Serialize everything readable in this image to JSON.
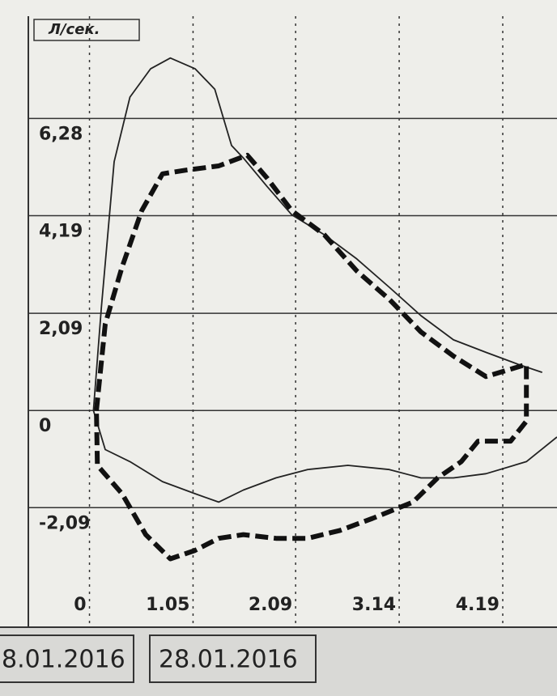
{
  "chart_data": {
    "type": "line",
    "y_label": "Л/сек.",
    "xlim": [
      -0.62,
      4.74
    ],
    "ylim": [
      -4.4,
      8.48
    ],
    "xticks": [
      0,
      1.05,
      2.09,
      3.14,
      4.19
    ],
    "yticks": [
      {
        "value": 6.28,
        "label": "6,28"
      },
      {
        "value": 4.19,
        "label": "4,19"
      },
      {
        "value": 2.09,
        "label": "2,09"
      },
      0,
      {
        "value": -2.09,
        "label": "-2,09"
      }
    ],
    "grid": true,
    "series": [
      {
        "color": "#222222",
        "dash": false,
        "x": [
          4.74,
          4.43,
          4.02,
          3.69,
          3.36,
          3.04,
          2.62,
          2.21,
          1.89,
          1.56,
          1.31,
          1.07,
          0.74,
          0.41,
          0.16,
          0.04,
          0.12,
          0.25,
          0.41,
          0.62,
          0.82,
          1.07,
          1.27,
          1.44,
          1.56,
          1.8,
          2.05,
          2.38,
          2.71,
          3.04,
          3.36,
          3.69,
          4.02,
          4.35,
          4.59
        ],
        "values": [
          -0.57,
          -1.1,
          -1.36,
          -1.45,
          -1.45,
          -1.27,
          -1.18,
          -1.27,
          -1.45,
          -1.71,
          -1.97,
          -1.79,
          -1.53,
          -1.1,
          -0.84,
          0,
          2.21,
          5.35,
          6.74,
          7.35,
          7.58,
          7.35,
          6.91,
          5.7,
          5.43,
          4.82,
          4.21,
          3.78,
          3.26,
          2.65,
          2.04,
          1.52,
          1.25,
          0.99,
          0.82
        ]
      },
      {
        "color": "#111111",
        "dash": true,
        "x": [
          0.07,
          0.16,
          0.33,
          0.53,
          0.74,
          0.98,
          1.31,
          1.6,
          1.8,
          2.05,
          2.38,
          2.71,
          3.04,
          3.36,
          3.69,
          4.02,
          4.43,
          4.43,
          4.27,
          3.94,
          3.77,
          3.53,
          3.28,
          2.87,
          2.54,
          2.21,
          1.89,
          1.56,
          1.31,
          1.07,
          0.82,
          0.57,
          0.33,
          0.08,
          0.07
        ],
        "values": [
          0,
          1.86,
          3.08,
          4.3,
          5.09,
          5.17,
          5.26,
          5.49,
          5.0,
          4.3,
          3.78,
          3.0,
          2.39,
          1.69,
          1.17,
          0.73,
          0.99,
          -0.23,
          -0.66,
          -0.66,
          -1.1,
          -1.45,
          -1.97,
          -2.32,
          -2.58,
          -2.75,
          -2.75,
          -2.67,
          -2.75,
          -3.01,
          -3.19,
          -2.67,
          -1.79,
          -1.18,
          0
        ]
      }
    ]
  },
  "date_labels": [
    "8.01.2016",
    "28.01.2016"
  ]
}
